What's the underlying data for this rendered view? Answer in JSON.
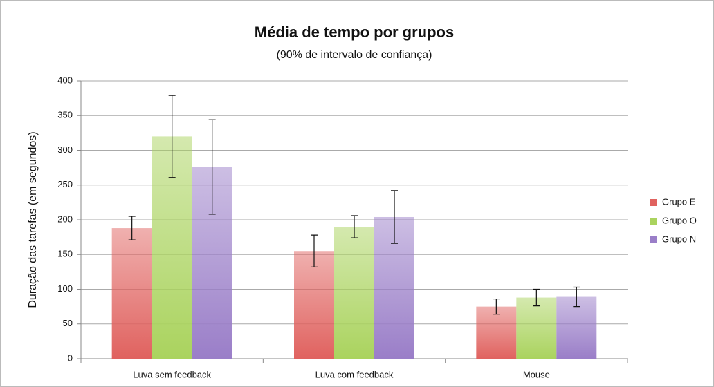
{
  "chart_data": {
    "type": "bar",
    "title": "Média de tempo por grupos",
    "subtitle": "(90% de intervalo de confiança)",
    "y_label": "Duração das tarefas (em segundos)",
    "categories": [
      "Luva sem feedback",
      "Luva com feedback",
      "Mouse"
    ],
    "series": [
      {
        "name": "Grupo E",
        "color": "#e0625f",
        "values": [
          188,
          155,
          75
        ],
        "errors": [
          17,
          23,
          11
        ]
      },
      {
        "name": "Grupo O",
        "color": "#aad35e",
        "values": [
          320,
          190,
          88
        ],
        "errors": [
          59,
          16,
          12
        ]
      },
      {
        "name": "Grupo N",
        "color": "#9a7ec8",
        "values": [
          276,
          204,
          89
        ],
        "errors": [
          68,
          38,
          14
        ]
      }
    ],
    "ylim": [
      0,
      400
    ],
    "yticks": [
      0,
      50,
      100,
      150,
      200,
      250,
      300,
      350,
      400
    ],
    "grid": true,
    "legend": "right"
  }
}
